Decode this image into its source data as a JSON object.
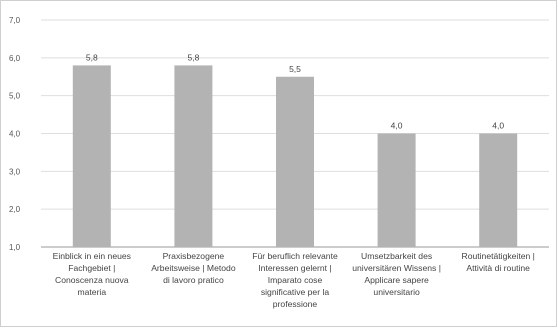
{
  "chart_data": {
    "type": "bar",
    "title": "",
    "xlabel": "",
    "ylabel": "",
    "ylim": [
      1.0,
      7.0
    ],
    "yticks": [
      "1,0",
      "2,0",
      "3,0",
      "4,0",
      "5,0",
      "6,0",
      "7,0"
    ],
    "grid": true,
    "categories": [
      [
        "Einblick in ein neues",
        "Fachgebiet |",
        "Conoscenza nuova",
        "materia"
      ],
      [
        "Praxisbezogene",
        "Arbeitsweise | Metodo",
        "di lavoro pratico"
      ],
      [
        "Für beruflich relevante",
        "Interessen gelernt |",
        "Imparato cose",
        "significative per la",
        "professione"
      ],
      [
        "Umsetzbarkeit des",
        "universitären Wissens |",
        "Applicare sapere",
        "universitario"
      ],
      [
        "Routinetätigkeiten |",
        "Attività di routine"
      ]
    ],
    "values": [
      5.8,
      5.8,
      5.5,
      4.0,
      4.0
    ],
    "value_labels": [
      "5,8",
      "5,8",
      "5,5",
      "4,0",
      "4,0"
    ],
    "colors": {
      "bar": "#b3b3b3",
      "grid": "#dedede",
      "axis": "#9a9a9a"
    }
  }
}
